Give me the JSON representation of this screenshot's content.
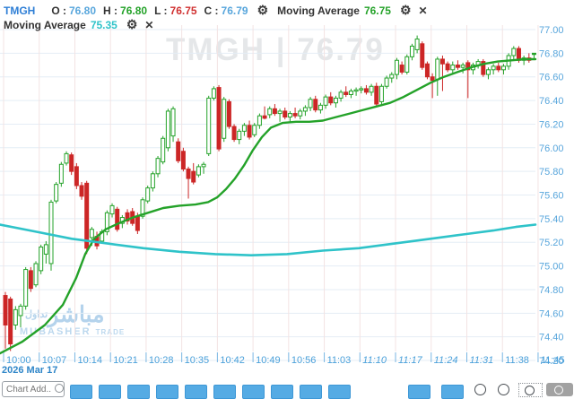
{
  "colors": {
    "up_green": "#24a229",
    "down_red": "#cc2626",
    "ma_fast_green": "#24a229",
    "ma_slow_cyan": "#2fc3c9",
    "axis_blue": "#58a6dc",
    "grid_h": "#e4edf5",
    "grid_v": "#f3e3e3",
    "toolbar_blue": "#55abe4"
  },
  "header": {
    "symbol": "TMGH",
    "ohlc": [
      {
        "label": "O :",
        "value": "76.80",
        "color_class": "val-blue"
      },
      {
        "label": "H :",
        "value": "76.80",
        "color_class": "val-green"
      },
      {
        "label": "L :",
        "value": "76.75",
        "color_class": "val-red"
      },
      {
        "label": "C :",
        "value": "76.79",
        "color_class": "val-blue"
      }
    ],
    "indicators": [
      {
        "label": "Moving Average",
        "value": "76.75",
        "color_class": "val-green"
      },
      {
        "label": "Moving Average",
        "value": "75.35",
        "color_class": "val-cyan"
      }
    ]
  },
  "watermark": {
    "text": "TMGH  |  76.79"
  },
  "logo_watermark": {
    "arabic_main": "مباشر",
    "arabic_small": "تداول",
    "latin_main": "MUBASHER",
    "latin_small": "TRADE"
  },
  "chart_data": {
    "type": "candlestick",
    "title": "TMGH intraday 1-minute chart",
    "date_label": "2026 Mar 17",
    "x_labels": [
      "10:00",
      "10:07",
      "10:14",
      "10:21",
      "10:28",
      "10:35",
      "10:42",
      "10:49",
      "10:56",
      "11:03",
      "11:10",
      "11:17",
      "11:24",
      "11:31",
      "11:38",
      "11:45"
    ],
    "italic_x_labels": [
      "11:10",
      "11:17",
      "11:24",
      "11:31"
    ],
    "y_ticks": [
      77.0,
      76.8,
      76.6,
      76.4,
      76.2,
      76.0,
      75.8,
      75.6,
      75.4,
      75.2,
      75.0,
      74.8,
      74.6,
      74.4,
      74.2
    ],
    "ylim": [
      74.15,
      77.05
    ],
    "grid": true,
    "candles": [
      [
        "10:00",
        74.75,
        74.78,
        74.3,
        74.5
      ],
      [
        "10:01",
        74.72,
        74.74,
        74.28,
        74.34
      ],
      [
        "10:02",
        74.5,
        74.66,
        74.46,
        74.63
      ],
      [
        "10:03",
        74.58,
        74.68,
        74.48,
        74.66
      ],
      [
        "10:04",
        74.66,
        74.99,
        74.63,
        74.97
      ],
      [
        "10:05",
        74.96,
        74.99,
        74.78,
        74.81
      ],
      [
        "10:06",
        74.84,
        75.04,
        74.82,
        75.02
      ],
      [
        "10:07",
        74.96,
        75.18,
        74.93,
        75.16
      ],
      [
        "10:08",
        75.1,
        75.21,
        75.02,
        75.18
      ],
      [
        "10:09",
        75.02,
        75.56,
        74.96,
        75.54
      ],
      [
        "10:10",
        75.55,
        75.71,
        75.53,
        75.69
      ],
      [
        "10:11",
        75.7,
        75.88,
        75.67,
        75.86
      ],
      [
        "10:12",
        75.87,
        75.97,
        75.85,
        75.95
      ],
      [
        "10:13",
        75.94,
        75.96,
        75.77,
        75.8
      ],
      [
        "10:14",
        75.84,
        75.87,
        75.65,
        75.68
      ],
      [
        "10:15",
        75.68,
        75.71,
        75.56,
        75.59
      ],
      [
        "10:16",
        75.7,
        75.72,
        75.1,
        75.15
      ],
      [
        "10:17",
        75.24,
        75.33,
        75.17,
        75.31
      ],
      [
        "10:18",
        75.25,
        75.29,
        75.14,
        75.17
      ],
      [
        "10:19",
        75.21,
        75.31,
        75.19,
        75.29
      ],
      [
        "10:20",
        75.29,
        75.47,
        75.26,
        75.45
      ],
      [
        "10:21",
        75.44,
        75.53,
        75.41,
        75.51
      ],
      [
        "10:22",
        75.48,
        75.5,
        75.29,
        75.31
      ],
      [
        "10:23",
        75.36,
        75.43,
        75.32,
        75.41
      ],
      [
        "10:24",
        75.45,
        75.48,
        75.35,
        75.38
      ],
      [
        "10:25",
        75.46,
        75.49,
        75.34,
        75.36
      ],
      [
        "10:26",
        75.42,
        75.45,
        75.27,
        75.3
      ],
      [
        "10:27",
        75.42,
        75.58,
        75.4,
        75.56
      ],
      [
        "10:28",
        75.55,
        75.68,
        75.53,
        75.66
      ],
      [
        "10:29",
        75.66,
        75.8,
        75.63,
        75.78
      ],
      [
        "10:30",
        75.78,
        75.93,
        75.75,
        75.91
      ],
      [
        "10:31",
        75.88,
        76.1,
        75.86,
        76.08
      ],
      [
        "10:32",
        76.0,
        76.33,
        75.97,
        76.31
      ],
      [
        "10:33",
        76.1,
        76.35,
        76.05,
        76.33
      ],
      [
        "10:34",
        76.05,
        76.08,
        75.87,
        75.89
      ],
      [
        "10:35",
        75.97,
        76.0,
        75.8,
        75.82
      ],
      [
        "10:36",
        75.82,
        75.84,
        75.57,
        75.74
      ],
      [
        "10:37",
        75.8,
        75.87,
        75.69,
        75.71
      ],
      [
        "10:38",
        75.77,
        75.86,
        75.75,
        75.84
      ],
      [
        "10:39",
        75.84,
        75.88,
        75.78,
        75.86
      ],
      [
        "10:40",
        75.95,
        76.44,
        75.93,
        76.42
      ],
      [
        "10:41",
        76.42,
        76.52,
        76.4,
        76.5
      ],
      [
        "10:42",
        76.51,
        76.53,
        75.97,
        75.99
      ],
      [
        "10:43",
        76.08,
        76.43,
        76.05,
        76.41
      ],
      [
        "10:44",
        76.39,
        76.41,
        76.16,
        76.18
      ],
      [
        "10:45",
        76.18,
        76.2,
        76.05,
        76.07
      ],
      [
        "10:46",
        76.07,
        76.16,
        76.03,
        76.14
      ],
      [
        "10:47",
        76.14,
        76.21,
        76.1,
        76.19
      ],
      [
        "10:48",
        76.19,
        76.23,
        76.07,
        76.09
      ],
      [
        "10:49",
        76.11,
        76.21,
        76.09,
        76.19
      ],
      [
        "10:50",
        76.19,
        76.29,
        76.16,
        76.27
      ],
      [
        "10:51",
        76.27,
        76.35,
        76.24,
        76.25
      ],
      [
        "10:52",
        76.28,
        76.35,
        76.25,
        76.33
      ],
      [
        "10:53",
        76.33,
        76.37,
        76.27,
        76.29
      ],
      [
        "10:54",
        76.29,
        76.33,
        76.22,
        76.31
      ],
      [
        "10:55",
        76.31,
        76.34,
        76.24,
        76.26
      ],
      [
        "10:56",
        76.26,
        76.31,
        76.21,
        76.29
      ],
      [
        "10:57",
        76.29,
        76.34,
        76.25,
        76.27
      ],
      [
        "10:58",
        76.27,
        76.33,
        76.24,
        76.31
      ],
      [
        "10:59",
        76.31,
        76.36,
        76.27,
        76.34
      ],
      [
        "11:00",
        76.34,
        76.43,
        76.31,
        76.41
      ],
      [
        "11:01",
        76.41,
        76.44,
        76.3,
        76.32
      ],
      [
        "11:02",
        76.32,
        76.38,
        76.29,
        76.36
      ],
      [
        "11:03",
        76.36,
        76.45,
        76.33,
        76.43
      ],
      [
        "11:04",
        76.43,
        76.47,
        76.36,
        76.38
      ],
      [
        "11:05",
        76.38,
        76.44,
        76.34,
        76.42
      ],
      [
        "11:06",
        76.42,
        76.49,
        76.39,
        76.47
      ],
      [
        "11:07",
        76.47,
        76.52,
        76.43,
        76.45
      ],
      [
        "11:08",
        76.45,
        76.5,
        76.42,
        76.48
      ],
      [
        "11:09",
        76.48,
        76.51,
        76.44,
        76.49
      ],
      [
        "11:10",
        76.49,
        76.52,
        76.46,
        76.5
      ],
      [
        "11:11",
        76.5,
        76.53,
        76.45,
        76.47
      ],
      [
        "11:12",
        76.47,
        76.54,
        76.44,
        76.52
      ],
      [
        "11:13",
        76.52,
        76.55,
        76.35,
        76.37
      ],
      [
        "11:14",
        76.39,
        76.54,
        76.37,
        76.52
      ],
      [
        "11:15",
        76.52,
        76.61,
        76.5,
        76.59
      ],
      [
        "11:16",
        76.59,
        76.64,
        76.55,
        76.62
      ],
      [
        "11:17",
        76.62,
        76.76,
        76.58,
        76.74
      ],
      [
        "11:18",
        76.7,
        76.73,
        76.62,
        76.64
      ],
      [
        "11:19",
        76.64,
        76.79,
        76.62,
        76.77
      ],
      [
        "11:20",
        76.77,
        76.88,
        76.74,
        76.86
      ],
      [
        "11:21",
        76.83,
        76.95,
        76.8,
        76.92
      ],
      [
        "11:22",
        76.88,
        76.9,
        76.66,
        76.68
      ],
      [
        "11:23",
        76.71,
        76.73,
        76.58,
        76.6
      ],
      [
        "11:24",
        76.6,
        76.63,
        76.42,
        76.57
      ],
      [
        "11:25",
        76.58,
        76.77,
        76.44,
        76.75
      ],
      [
        "11:26",
        76.75,
        76.78,
        76.48,
        76.71
      ],
      [
        "11:27",
        76.71,
        76.73,
        76.64,
        76.66
      ],
      [
        "11:28",
        76.66,
        76.73,
        76.62,
        76.7
      ],
      [
        "11:29",
        76.7,
        76.74,
        76.66,
        76.68
      ],
      [
        "11:30",
        76.68,
        76.72,
        76.63,
        76.7
      ],
      [
        "11:31",
        76.72,
        76.74,
        76.42,
        76.66
      ],
      [
        "11:32",
        76.66,
        76.72,
        76.62,
        76.7
      ],
      [
        "11:33",
        76.7,
        76.75,
        76.67,
        76.73
      ],
      [
        "11:34",
        76.73,
        76.75,
        76.6,
        76.62
      ],
      [
        "11:35",
        76.62,
        76.68,
        76.58,
        76.66
      ],
      [
        "11:36",
        76.66,
        76.71,
        76.62,
        76.69
      ],
      [
        "11:37",
        76.69,
        76.72,
        76.64,
        76.66
      ],
      [
        "11:38",
        76.66,
        76.71,
        76.62,
        76.69
      ],
      [
        "11:39",
        76.69,
        76.8,
        76.66,
        76.78
      ],
      [
        "11:40",
        76.78,
        76.86,
        76.74,
        76.84
      ],
      [
        "11:41",
        76.84,
        76.86,
        76.72,
        76.74
      ],
      [
        "11:42",
        76.74,
        76.78,
        76.7,
        76.76
      ],
      [
        "11:43",
        76.76,
        76.8,
        76.72,
        76.74
      ],
      [
        "11:44",
        76.8,
        76.8,
        76.75,
        76.79
      ]
    ],
    "moving_averages": [
      {
        "name": "Moving Average (fast)",
        "current": 76.75,
        "color": "#24a229",
        "width": 2.4,
        "points": [
          [
            0,
            74.26
          ],
          [
            25,
            74.36
          ],
          [
            50,
            74.5
          ],
          [
            70,
            74.67
          ],
          [
            85,
            74.9
          ],
          [
            95,
            75.1
          ],
          [
            105,
            75.23
          ],
          [
            118,
            75.31
          ],
          [
            132,
            75.36
          ],
          [
            148,
            75.41
          ],
          [
            165,
            75.45
          ],
          [
            182,
            75.49
          ],
          [
            200,
            75.51
          ],
          [
            218,
            75.52
          ],
          [
            232,
            75.54
          ],
          [
            242,
            75.58
          ],
          [
            252,
            75.65
          ],
          [
            262,
            75.74
          ],
          [
            272,
            75.85
          ],
          [
            282,
            75.98
          ],
          [
            292,
            76.09
          ],
          [
            302,
            76.17
          ],
          [
            315,
            76.21
          ],
          [
            330,
            76.22
          ],
          [
            345,
            76.22
          ],
          [
            360,
            76.23
          ],
          [
            375,
            76.26
          ],
          [
            390,
            76.29
          ],
          [
            405,
            76.32
          ],
          [
            420,
            76.35
          ],
          [
            435,
            76.38
          ],
          [
            450,
            76.43
          ],
          [
            465,
            76.49
          ],
          [
            480,
            76.55
          ],
          [
            495,
            76.6
          ],
          [
            510,
            76.64
          ],
          [
            525,
            76.68
          ],
          [
            540,
            76.71
          ],
          [
            555,
            76.73
          ],
          [
            570,
            76.74
          ],
          [
            585,
            76.75
          ],
          [
            597,
            76.75
          ]
        ]
      },
      {
        "name": "Moving Average (slow)",
        "current": 75.35,
        "color": "#2fc3c9",
        "width": 2.6,
        "points": [
          [
            0,
            75.35
          ],
          [
            40,
            75.29
          ],
          [
            80,
            75.23
          ],
          [
            120,
            75.19
          ],
          [
            160,
            75.15
          ],
          [
            200,
            75.12
          ],
          [
            240,
            75.1
          ],
          [
            280,
            75.09
          ],
          [
            320,
            75.1
          ],
          [
            360,
            75.13
          ],
          [
            400,
            75.15
          ],
          [
            440,
            75.19
          ],
          [
            480,
            75.23
          ],
          [
            520,
            75.27
          ],
          [
            550,
            75.3
          ],
          [
            575,
            75.33
          ],
          [
            597,
            75.35
          ]
        ]
      }
    ]
  },
  "toolbar": {
    "search": {
      "placeholder": "Chart Add...",
      "icon": "magnifier-icon"
    },
    "interval_buttons": [
      "",
      "",
      "",
      "",
      "",
      "",
      "",
      "",
      "",
      ""
    ],
    "right_buttons": [
      "",
      ""
    ],
    "zoom_icons": [
      "magnifier-small-icon",
      "magnifier-icon",
      "box-zoom-icon",
      "zoom-reset-button"
    ]
  }
}
